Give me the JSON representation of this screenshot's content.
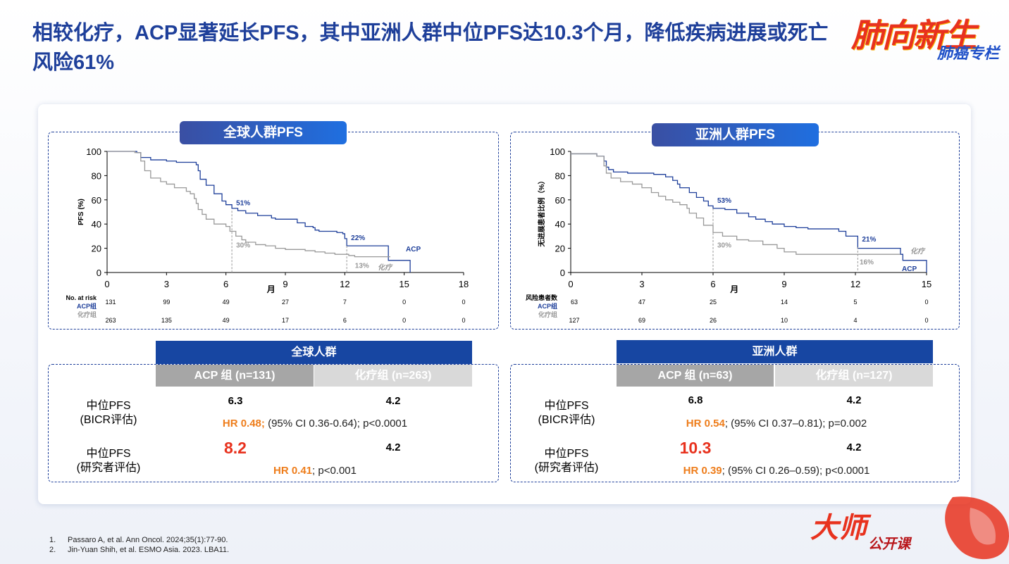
{
  "title": "相较化疗，ACP显著延长PFS，其中亚洲人群中位PFS达10.3个月，降低疾病进展或死亡风险61%",
  "brand": {
    "line1": "肺向新生",
    "line2": "肺癌专栏"
  },
  "bottom_brand": {
    "line1": "大师",
    "line2": "公开课"
  },
  "colors": {
    "acp": "#1e3f9a",
    "chemo": "#999999",
    "title": "#1e3f9a",
    "hr": "#ee7d1b",
    "highlight": "#e8321e"
  },
  "chart_data": [
    {
      "type": "line",
      "title": "全球人群PFS",
      "ylabel": "PFS (%)",
      "xlabel": "月",
      "xlim": [
        0,
        18
      ],
      "ylim": [
        0,
        100
      ],
      "xticks": [
        0,
        3,
        6,
        9,
        12,
        15,
        18
      ],
      "yticks": [
        0,
        20,
        40,
        60,
        80,
        100
      ],
      "series": [
        {
          "name": "ACP",
          "x": [
            0,
            1.5,
            1.7,
            2.2,
            3.0,
            3.5,
            4.5,
            4.6,
            4.7,
            5.0,
            5.4,
            5.8,
            6.0,
            6.3,
            6.6,
            7.0,
            7.6,
            8.3,
            8.5,
            9.0,
            9.6,
            10.0,
            10.4,
            10.5,
            10.7,
            11.5,
            11.6,
            11.9,
            12.0,
            12.1,
            14.1,
            14.2,
            15.0,
            15.3
          ],
          "y": [
            100,
            99,
            95,
            93,
            92,
            91,
            89,
            84,
            77,
            72,
            65,
            59,
            56,
            53,
            51,
            49,
            47,
            45,
            44,
            44,
            41,
            38,
            37,
            35,
            34,
            34,
            33,
            32,
            28,
            22,
            22,
            10,
            10,
            0
          ]
        },
        {
          "name": "化疗",
          "x": [
            0,
            1.4,
            1.7,
            1.9,
            2.2,
            2.7,
            3.0,
            3.4,
            4.0,
            4.2,
            4.4,
            4.5,
            4.6,
            4.8,
            5.0,
            5.4,
            6.0,
            6.2,
            6.5,
            6.8,
            7.0,
            7.5,
            8.0,
            8.5,
            9.0,
            10.0,
            10.5,
            11.0,
            11.5,
            12.0,
            12.2,
            12.5,
            13.0,
            14.0,
            14.3
          ],
          "y": [
            100,
            99,
            92,
            84,
            78,
            75,
            73,
            70,
            67,
            65,
            61,
            57,
            52,
            48,
            44,
            40,
            38,
            34,
            30,
            27,
            25,
            23,
            22,
            20,
            19,
            18,
            17,
            16,
            15,
            15,
            14,
            13,
            13,
            13,
            13
          ]
        }
      ],
      "annotations": [
        {
          "text": "51%",
          "series": "ACP",
          "x": 6.3,
          "y": 51
        },
        {
          "text": "22%",
          "series": "ACP",
          "x": 12.1,
          "y": 22
        },
        {
          "text": "30%",
          "series": "化疗",
          "x": 6.3,
          "y": 30
        },
        {
          "text": "13%",
          "series": "化疗",
          "x": 12.3,
          "y": 13
        }
      ],
      "legend": {
        "acp": "ACP",
        "chemo": "化疗"
      },
      "risk_table": {
        "label": "No. at risk",
        "rows": [
          {
            "name": "ACP组",
            "values": [
              "131",
              "99",
              "49",
              "27",
              "7",
              "0",
              "0"
            ]
          },
          {
            "name": "化疗组",
            "values": [
              "263",
              "135",
              "49",
              "17",
              "6",
              "0",
              "0"
            ]
          }
        ]
      }
    },
    {
      "type": "line",
      "title": "亚洲人群PFS",
      "ylabel": "无进展患者比例（%）",
      "xlabel": "月",
      "xlim": [
        0,
        15
      ],
      "ylim": [
        0,
        100
      ],
      "xticks": [
        0,
        3,
        6,
        9,
        12,
        15
      ],
      "yticks": [
        0,
        20,
        40,
        60,
        80,
        100
      ],
      "series": [
        {
          "name": "ACP",
          "x": [
            0,
            1.1,
            1.4,
            1.5,
            1.6,
            1.8,
            2.4,
            3.2,
            3.5,
            4.0,
            4.3,
            4.5,
            4.6,
            5.0,
            5.3,
            5.6,
            5.8,
            6.0,
            6.5,
            7.0,
            7.5,
            7.8,
            8.2,
            8.5,
            9.0,
            9.5,
            10.0,
            11.0,
            11.3,
            11.6,
            12.1,
            13.4,
            13.9,
            14.0,
            15.0
          ],
          "y": [
            98,
            96,
            92,
            87,
            85,
            83,
            82,
            82,
            81,
            79,
            76,
            73,
            70,
            66,
            62,
            59,
            55,
            53,
            52,
            49,
            46,
            44,
            42,
            40,
            38,
            37,
            36,
            36,
            34,
            30,
            20,
            20,
            15,
            10,
            0
          ]
        },
        {
          "name": "化疗",
          "x": [
            0,
            1.1,
            1.4,
            1.5,
            1.7,
            2.1,
            2.6,
            3.0,
            3.4,
            3.7,
            4.0,
            4.3,
            4.6,
            4.9,
            5.0,
            5.3,
            5.6,
            6.0,
            6.4,
            7.0,
            7.5,
            8.1,
            8.7,
            9.0,
            9.5,
            10.0,
            11.0,
            12.0,
            13.6,
            13.9
          ],
          "y": [
            98,
            96,
            88,
            82,
            78,
            75,
            73,
            70,
            66,
            63,
            60,
            58,
            56,
            53,
            49,
            45,
            39,
            33,
            30,
            27,
            26,
            23,
            20,
            17,
            15,
            15,
            15,
            15,
            15,
            15
          ]
        }
      ],
      "annotations": [
        {
          "text": "53%",
          "series": "ACP",
          "x": 6.0,
          "y": 53
        },
        {
          "text": "21%",
          "series": "ACP",
          "x": 12.1,
          "y": 21
        },
        {
          "text": "30%",
          "series": "化疗",
          "x": 6.0,
          "y": 30
        },
        {
          "text": "16%",
          "series": "化疗",
          "x": 12.0,
          "y": 16
        }
      ],
      "legend": {
        "acp": "ACP",
        "chemo": "化疗"
      },
      "risk_table": {
        "label": "风险患者数",
        "rows": [
          {
            "name": "ACP组",
            "values": [
              "63",
              "47",
              "25",
              "14",
              "5",
              "0"
            ]
          },
          {
            "name": "化疗组",
            "values": [
              "127",
              "69",
              "26",
              "10",
              "4",
              "0"
            ]
          }
        ]
      }
    }
  ],
  "tables": [
    {
      "header": "全球人群",
      "col_acp": "ACP 组 (n=131)",
      "col_chemo": "化疗组 (n=263)",
      "rows": [
        {
          "label_l1": "中位PFS",
          "label_l2": "(BICR评估)",
          "acp": "6.3",
          "chemo": "4.2",
          "hr_label": "HR 0.48;",
          "hr_rest": " (95% CI 0.36-0.64); p<0.0001"
        },
        {
          "label_l1": "中位PFS",
          "label_l2": "(研究者评估)",
          "acp": "8.2",
          "chemo": "4.2",
          "hr_label": "HR 0.41",
          "hr_rest": "; p<0.001"
        }
      ]
    },
    {
      "header": "亚洲人群",
      "col_acp": "ACP 组 (n=63)",
      "col_chemo": "化疗组 (n=127)",
      "rows": [
        {
          "label_l1": "中位PFS",
          "label_l2": "(BICR评估)",
          "acp": "6.8",
          "chemo": "4.2",
          "hr_label": "HR 0.54",
          "hr_rest": "; (95% CI 0.37–0.81); p=0.002"
        },
        {
          "label_l1": "中位PFS",
          "label_l2": "(研究者评估)",
          "acp": "10.3",
          "chemo": "4.2",
          "hr_label": "HR 0.39",
          "hr_rest": "; (95% CI 0.26–0.59); p<0.0001"
        }
      ]
    }
  ],
  "references": [
    {
      "n": "1.",
      "text": "Passaro A, et al. Ann Oncol. 2024;35(1):77-90."
    },
    {
      "n": "2.",
      "text": "Jin-Yuan Shih, et al. ESMO Asia. 2023. LBA11."
    }
  ]
}
